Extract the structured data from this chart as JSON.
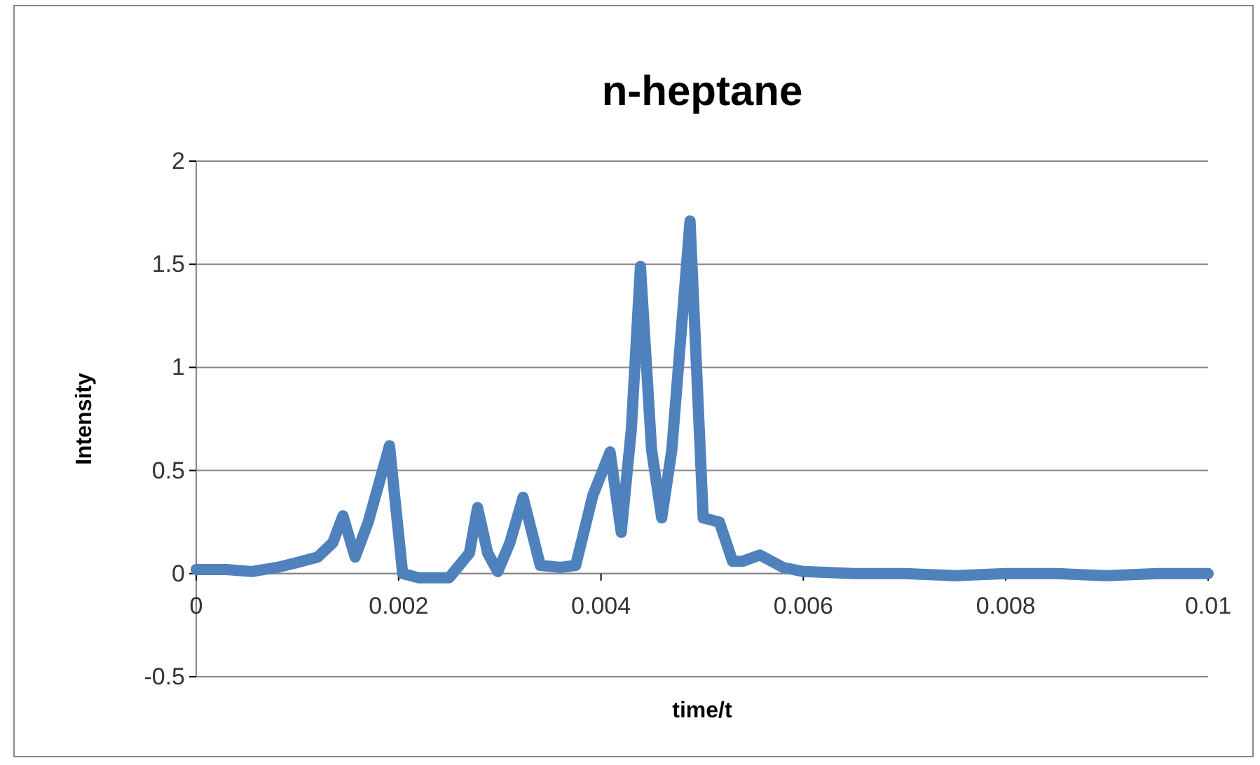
{
  "chart_data": {
    "type": "line",
    "title": "n-heptane",
    "xlabel": "time/t",
    "ylabel": "Intensity",
    "xlim": [
      0,
      0.01
    ],
    "xticks": [
      0,
      0.002,
      0.004,
      0.006,
      0.008,
      0.01
    ],
    "ylim": [
      -0.5,
      2
    ],
    "yticks": [
      -0.5,
      0,
      0.5,
      1,
      1.5,
      2
    ],
    "grid": "y",
    "series": [
      {
        "color": "#4f81bd",
        "x": [
          0,
          0.0003,
          0.00055,
          0.0008,
          0.00097,
          0.0012,
          0.00135,
          0.00145,
          0.00157,
          0.0017,
          0.00191,
          0.00204,
          0.0022,
          0.0025,
          0.0027,
          0.00278,
          0.00288,
          0.00298,
          0.0031,
          0.00323,
          0.0034,
          0.0036,
          0.00375,
          0.00392,
          0.00409,
          0.0042,
          0.0043,
          0.00439,
          0.0045,
          0.0046,
          0.0047,
          0.00488,
          0.00501,
          0.00517,
          0.0053,
          0.0054,
          0.00557,
          0.0058,
          0.006,
          0.0065,
          0.007,
          0.0075,
          0.008,
          0.0085,
          0.009,
          0.0095,
          0.01
        ],
        "values": [
          0.02,
          0.02,
          0.01,
          0.03,
          0.05,
          0.08,
          0.15,
          0.28,
          0.08,
          0.25,
          0.62,
          0.0,
          -0.02,
          -0.02,
          0.1,
          0.32,
          0.1,
          0.01,
          0.15,
          0.37,
          0.04,
          0.03,
          0.04,
          0.38,
          0.59,
          0.2,
          0.7,
          1.49,
          0.6,
          0.27,
          0.6,
          1.71,
          0.27,
          0.25,
          0.06,
          0.06,
          0.09,
          0.03,
          0.01,
          0.0,
          0.0,
          -0.01,
          0.0,
          0.0,
          -0.01,
          0.0,
          0.0
        ]
      }
    ]
  }
}
